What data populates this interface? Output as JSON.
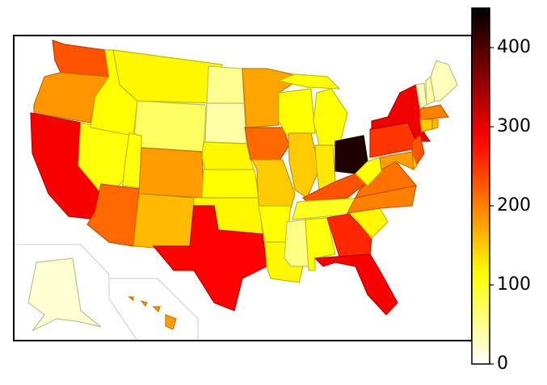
{
  "chart_data": {
    "type": "choropleth",
    "colormap": "hot_r",
    "values": [
      230,
      185,
      290,
      110,
      115,
      120,
      70,
      110,
      215,
      180,
      160,
      50,
      40,
      120,
      115,
      120,
      285,
      175,
      215,
      150,
      115,
      120,
      115,
      150,
      115,
      130,
      430,
      230,
      100,
      55,
      110,
      260,
      290,
      120,
      200,
      210,
      110,
      250,
      295,
      30,
      40,
      30,
      200,
      150,
      160,
      230,
      150,
      180,
      20,
      180
    ],
    "clim": [
      0,
      450
    ],
    "cticks": [
      0,
      100,
      200,
      300,
      400
    ]
  }
}
